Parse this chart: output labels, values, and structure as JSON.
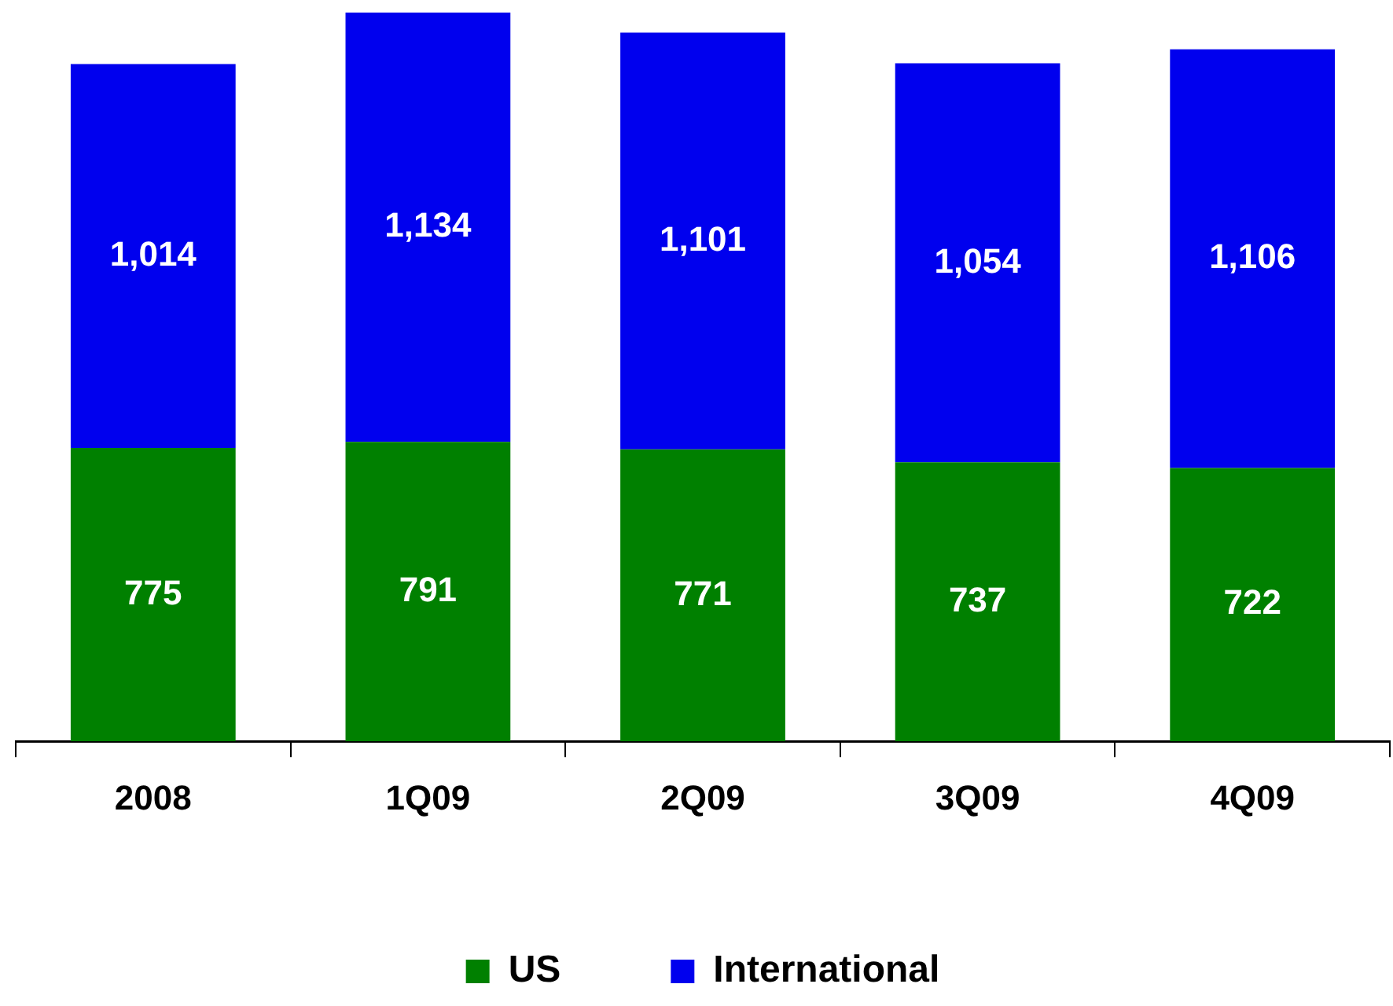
{
  "chart_data": {
    "type": "bar",
    "stacked": true,
    "legend": "bottom",
    "tick_labels": "x",
    "categories": [
      "2008",
      "1Q09",
      "2Q09",
      "3Q09",
      "4Q09"
    ],
    "series": [
      {
        "name": "US",
        "color": "#008000",
        "values": [
          775,
          791,
          771,
          737,
          722
        ],
        "value_labels": [
          "775",
          "791",
          "771",
          "737",
          "722"
        ]
      },
      {
        "name": "International",
        "color": "#0000ee",
        "values": [
          1014,
          1134,
          1101,
          1054,
          1106
        ],
        "value_labels": [
          "1,014",
          "1,134",
          "1,101",
          "1,054",
          "1,106"
        ]
      }
    ]
  }
}
